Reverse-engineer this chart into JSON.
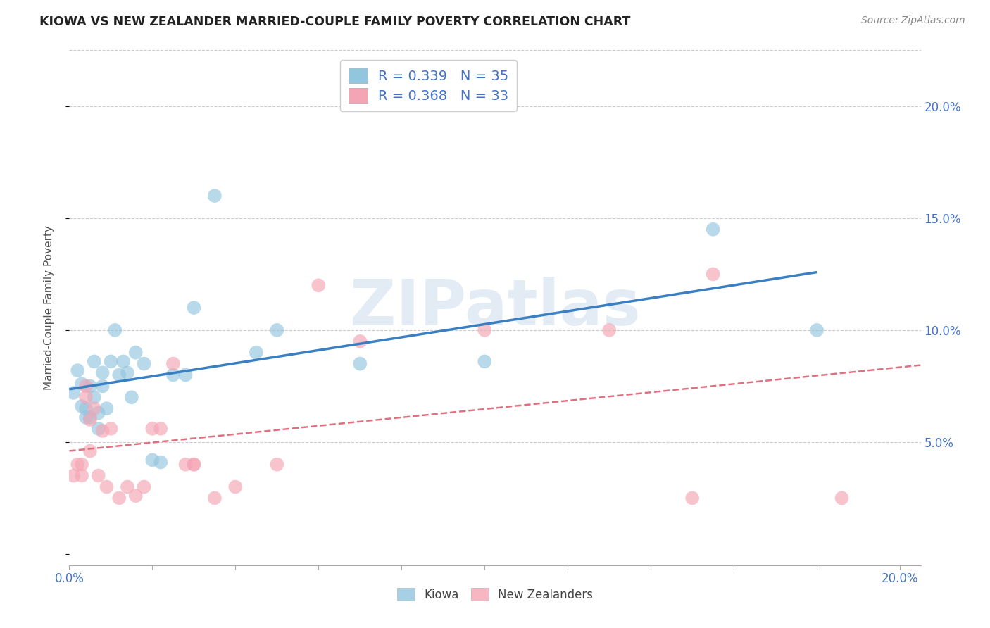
{
  "title": "KIOWA VS NEW ZEALANDER MARRIED-COUPLE FAMILY POVERTY CORRELATION CHART",
  "source": "Source: ZipAtlas.com",
  "ylabel": "Married-Couple Family Poverty",
  "xlim": [
    0.0,
    0.205
  ],
  "ylim": [
    -0.005,
    0.225
  ],
  "yticks": [
    0.0,
    0.05,
    0.1,
    0.15,
    0.2
  ],
  "xticks": [
    0.0,
    0.02,
    0.04,
    0.06,
    0.08,
    0.1,
    0.12,
    0.14,
    0.16,
    0.18,
    0.2
  ],
  "kiowa_R": 0.339,
  "kiowa_N": 35,
  "nz_R": 0.368,
  "nz_N": 33,
  "kiowa_color": "#92c5de",
  "nz_color": "#f4a5b5",
  "kiowa_line_color": "#3a7fc1",
  "nz_line_color": "#e07080",
  "bg_color": "#ffffff",
  "grid_color": "#cccccc",
  "watermark": "ZIPatlas",
  "axis_label_color": "#4472c4",
  "title_color": "#222222",
  "kiowa_x": [
    0.001,
    0.002,
    0.003,
    0.003,
    0.004,
    0.004,
    0.005,
    0.005,
    0.006,
    0.006,
    0.007,
    0.007,
    0.008,
    0.008,
    0.009,
    0.01,
    0.011,
    0.012,
    0.013,
    0.014,
    0.015,
    0.016,
    0.018,
    0.02,
    0.022,
    0.025,
    0.028,
    0.03,
    0.035,
    0.045,
    0.05,
    0.07,
    0.1,
    0.155,
    0.18
  ],
  "kiowa_y": [
    0.072,
    0.082,
    0.076,
    0.066,
    0.065,
    0.061,
    0.075,
    0.061,
    0.086,
    0.07,
    0.056,
    0.063,
    0.075,
    0.081,
    0.065,
    0.086,
    0.1,
    0.08,
    0.086,
    0.081,
    0.07,
    0.09,
    0.085,
    0.042,
    0.041,
    0.08,
    0.08,
    0.11,
    0.16,
    0.09,
    0.1,
    0.085,
    0.086,
    0.145,
    0.1
  ],
  "nz_x": [
    0.001,
    0.002,
    0.003,
    0.003,
    0.004,
    0.004,
    0.005,
    0.005,
    0.006,
    0.007,
    0.008,
    0.009,
    0.01,
    0.012,
    0.014,
    0.016,
    0.018,
    0.02,
    0.022,
    0.025,
    0.028,
    0.03,
    0.03,
    0.035,
    0.04,
    0.05,
    0.06,
    0.07,
    0.1,
    0.13,
    0.15,
    0.155,
    0.186
  ],
  "nz_y": [
    0.035,
    0.04,
    0.04,
    0.035,
    0.07,
    0.075,
    0.06,
    0.046,
    0.065,
    0.035,
    0.055,
    0.03,
    0.056,
    0.025,
    0.03,
    0.026,
    0.03,
    0.056,
    0.056,
    0.085,
    0.04,
    0.04,
    0.04,
    0.025,
    0.03,
    0.04,
    0.12,
    0.095,
    0.1,
    0.1,
    0.025,
    0.125,
    0.025
  ]
}
